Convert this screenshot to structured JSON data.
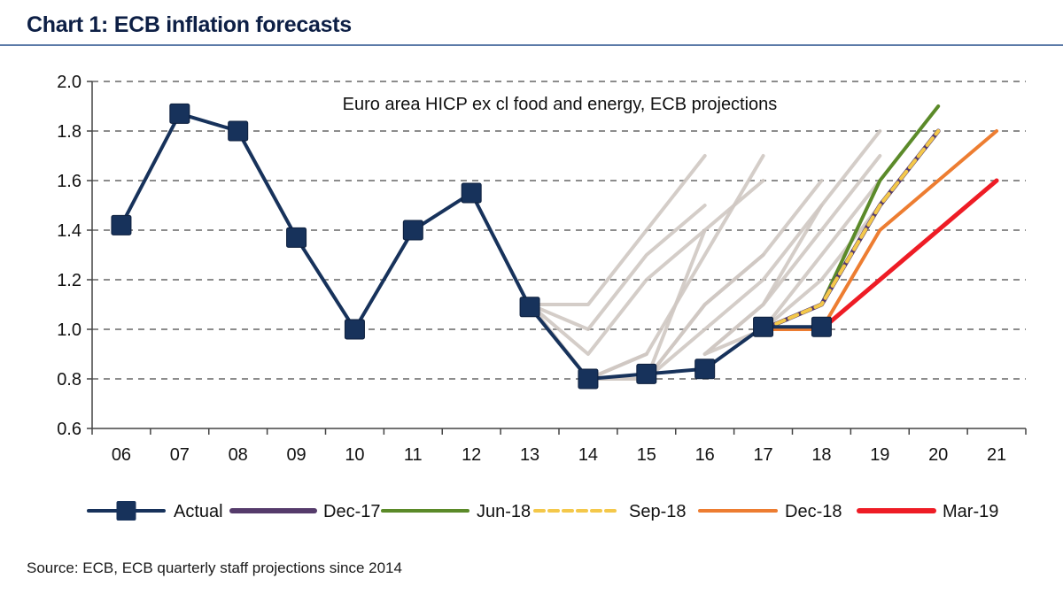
{
  "header": {
    "title": "Chart 1: ECB inflation forecasts"
  },
  "footer": {
    "source": "Source:  ECB, ECB quarterly staff projections  since 2014"
  },
  "chart_data": {
    "type": "line",
    "title": "Chart 1: ECB inflation forecasts",
    "annotation": "Euro area HICP ex cl food and energy, ECB projections",
    "xlabel": "",
    "ylabel": "",
    "categories": [
      "06",
      "07",
      "08",
      "09",
      "10",
      "11",
      "12",
      "13",
      "14",
      "15",
      "16",
      "17",
      "18",
      "19",
      "20",
      "21"
    ],
    "ylim": [
      0.6,
      2.0
    ],
    "yticks": [
      "0.6",
      "0.8",
      "1.0",
      "1.2",
      "1.4",
      "1.6",
      "1.8",
      "2.0"
    ],
    "grid": "horizontal dashed",
    "legend_position": "bottom",
    "series": [
      {
        "name": "Actual",
        "color": "#17325b",
        "marker": "square",
        "x": [
          "06",
          "07",
          "08",
          "09",
          "10",
          "11",
          "12",
          "13",
          "14",
          "15",
          "16",
          "17",
          "18"
        ],
        "values": [
          1.42,
          1.87,
          1.8,
          1.37,
          1.0,
          1.4,
          1.55,
          1.09,
          0.8,
          0.82,
          0.84,
          1.01,
          1.01
        ]
      },
      {
        "name": "Dec-17",
        "color": "#553b6b",
        "dash": false,
        "x": [
          "17",
          "18",
          "19",
          "20"
        ],
        "values": [
          1.0,
          1.1,
          1.5,
          1.8
        ]
      },
      {
        "name": "Jun-18",
        "color": "#5b8a29",
        "dash": false,
        "x": [
          "17",
          "18",
          "19",
          "20"
        ],
        "values": [
          1.0,
          1.1,
          1.6,
          1.9
        ]
      },
      {
        "name": "Sep-18",
        "color": "#f4c84a",
        "dash": true,
        "x": [
          "17",
          "18",
          "19",
          "20"
        ],
        "values": [
          1.0,
          1.1,
          1.5,
          1.8
        ]
      },
      {
        "name": "Dec-18",
        "color": "#ed7d31",
        "dash": false,
        "x": [
          "17",
          "18",
          "19",
          "20",
          "21"
        ],
        "values": [
          1.0,
          1.0,
          1.4,
          1.6,
          1.8
        ]
      },
      {
        "name": "Mar-19",
        "color": "#ee1c25",
        "dash": false,
        "x": [
          "18",
          "19",
          "20",
          "21"
        ],
        "values": [
          1.0,
          1.2,
          1.4,
          1.6
        ]
      }
    ],
    "past_projections": [
      {
        "x": [
          "13",
          "14",
          "15",
          "16"
        ],
        "values": [
          1.1,
          1.1,
          1.4,
          1.7
        ]
      },
      {
        "x": [
          "13",
          "14",
          "15",
          "16"
        ],
        "values": [
          1.1,
          1.0,
          1.3,
          1.5
        ]
      },
      {
        "x": [
          "13",
          "14",
          "15",
          "16"
        ],
        "values": [
          1.1,
          0.9,
          1.2,
          1.4
        ]
      },
      {
        "x": [
          "13",
          "14",
          "15"
        ],
        "values": [
          1.1,
          0.8,
          0.9
        ]
      },
      {
        "x": [
          "14",
          "15",
          "16",
          "17"
        ],
        "values": [
          0.8,
          0.9,
          1.3,
          1.7
        ]
      },
      {
        "x": [
          "14",
          "15",
          "16",
          "17"
        ],
        "values": [
          0.8,
          0.8,
          1.4,
          1.6
        ]
      },
      {
        "x": [
          "14",
          "15",
          "16",
          "17"
        ],
        "values": [
          0.8,
          0.8,
          1.1,
          1.3
        ]
      },
      {
        "x": [
          "15",
          "16",
          "17",
          "18"
        ],
        "values": [
          0.8,
          1.1,
          1.3,
          1.6
        ]
      },
      {
        "x": [
          "15",
          "16",
          "17",
          "18"
        ],
        "values": [
          0.8,
          1.0,
          1.2,
          1.5
        ]
      },
      {
        "x": [
          "16",
          "17",
          "18",
          "19"
        ],
        "values": [
          0.9,
          1.1,
          1.5,
          1.8
        ]
      },
      {
        "x": [
          "16",
          "17",
          "18",
          "19"
        ],
        "values": [
          0.9,
          1.1,
          1.4,
          1.7
        ]
      },
      {
        "x": [
          "16",
          "17",
          "18",
          "19"
        ],
        "values": [
          0.9,
          1.0,
          1.3,
          1.6
        ]
      },
      {
        "x": [
          "17",
          "18",
          "19"
        ],
        "values": [
          1.0,
          1.2,
          1.5
        ]
      }
    ],
    "past_projection_color": "#cfc8c2"
  }
}
